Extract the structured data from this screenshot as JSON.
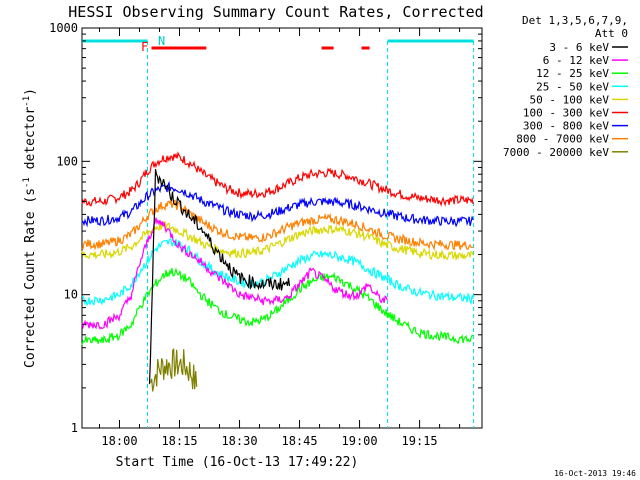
{
  "chart_data": {
    "type": "line",
    "title": "HESSI Observing Summary Count Rates, Corrected",
    "xlabel": "Start Time (16-Oct-13 17:49:22)",
    "ylabel_main": "Corrected Count Rate (s",
    "ylabel_sup1": "-1",
    "ylabel_mid": " detector",
    "ylabel_sup2": "-1",
    "ylabel_end": ")",
    "yscale": "log",
    "ylim": [
      1,
      1000
    ],
    "xlim_minutes": [
      -9.37,
      90.6
    ],
    "x_ticks": [
      "18:00",
      "18:15",
      "18:30",
      "18:45",
      "19:00",
      "19:15"
    ],
    "y_ticks": [
      "1",
      "10",
      "100",
      "1000"
    ],
    "legend_header": [
      "Det 1,3,5,6,7,9,",
      "Att 0"
    ],
    "legend_position": "right",
    "grid": false,
    "timestamp": "16-Oct-2013 19:46",
    "flags": {
      "F_label": "F",
      "N_label": "N",
      "night_intervals_min": [
        [
          -9.37,
          7.0
        ],
        [
          67.0,
          88.5
        ]
      ],
      "flare_intervals_min": [
        [
          8.0,
          21.7
        ],
        [
          50.5,
          53.5
        ],
        [
          60.5,
          62.5
        ]
      ]
    },
    "series": [
      {
        "name": "3 - 6 keV",
        "color": "#000000",
        "points": [
          [
            7.5,
            2
          ],
          [
            9.0,
            80
          ],
          [
            11.0,
            70
          ],
          [
            13.0,
            55
          ],
          [
            15.0,
            48
          ],
          [
            17.0,
            40
          ],
          [
            19.0,
            35
          ],
          [
            21.0,
            30
          ],
          [
            23.0,
            24
          ],
          [
            25.0,
            20
          ],
          [
            27.0,
            17
          ],
          [
            29.0,
            14
          ],
          [
            31.0,
            13
          ],
          [
            33.0,
            12.5
          ],
          [
            35.0,
            12
          ],
          [
            37.0,
            12
          ],
          [
            39.0,
            12
          ],
          [
            41.0,
            12
          ],
          [
            42.5,
            12
          ]
        ]
      },
      {
        "name": "6 - 12 keV",
        "color": "#ff00ff",
        "points": [
          [
            -9.37,
            6
          ],
          [
            -4,
            6
          ],
          [
            0,
            7
          ],
          [
            3,
            10
          ],
          [
            5,
            17
          ],
          [
            7,
            25
          ],
          [
            9,
            35
          ],
          [
            11,
            34
          ],
          [
            13,
            28
          ],
          [
            15,
            23
          ],
          [
            18,
            20
          ],
          [
            21,
            17
          ],
          [
            24,
            14
          ],
          [
            27,
            12
          ],
          [
            30,
            10
          ],
          [
            33,
            9.5
          ],
          [
            36,
            9
          ],
          [
            39,
            9
          ],
          [
            42,
            9.5
          ],
          [
            45,
            12
          ],
          [
            48,
            15
          ],
          [
            51,
            13
          ],
          [
            54,
            11
          ],
          [
            57,
            10
          ],
          [
            60,
            10
          ],
          [
            62,
            12
          ],
          [
            64,
            10
          ],
          [
            66,
            9
          ],
          [
            67,
            9
          ]
        ]
      },
      {
        "name": "12 - 25 keV",
        "color": "#00ff00",
        "points": [
          [
            -9.37,
            4.5
          ],
          [
            -4,
            4.5
          ],
          [
            0,
            5
          ],
          [
            3,
            6
          ],
          [
            5,
            8
          ],
          [
            7,
            10
          ],
          [
            9,
            12
          ],
          [
            11,
            14
          ],
          [
            13,
            15
          ],
          [
            15,
            14
          ],
          [
            17,
            13
          ],
          [
            19,
            11
          ],
          [
            21,
            9.5
          ],
          [
            24,
            8
          ],
          [
            27,
            7
          ],
          [
            30,
            6.5
          ],
          [
            33,
            6.2
          ],
          [
            36,
            6.5
          ],
          [
            39,
            7.5
          ],
          [
            42,
            9
          ],
          [
            45,
            11
          ],
          [
            48,
            12.5
          ],
          [
            51,
            13.5
          ],
          [
            54,
            13.5
          ],
          [
            57,
            12
          ],
          [
            60,
            10.5
          ],
          [
            63,
            9
          ],
          [
            66,
            7.5
          ],
          [
            69,
            6.5
          ],
          [
            72,
            5.7
          ],
          [
            75,
            5.2
          ],
          [
            78,
            5
          ],
          [
            81,
            4.8
          ],
          [
            84,
            4.7
          ],
          [
            88.5,
            4.6
          ]
        ]
      },
      {
        "name": "25 - 50 keV",
        "color": "#00ffff",
        "points": [
          [
            -9.37,
            9
          ],
          [
            -4,
            9.2
          ],
          [
            0,
            10
          ],
          [
            3,
            12
          ],
          [
            5,
            15
          ],
          [
            7,
            18
          ],
          [
            9,
            22
          ],
          [
            11,
            24
          ],
          [
            13,
            25
          ],
          [
            15,
            24
          ],
          [
            17,
            22
          ],
          [
            19,
            19.5
          ],
          [
            21,
            17
          ],
          [
            24,
            15
          ],
          [
            27,
            13.5
          ],
          [
            30,
            12.5
          ],
          [
            33,
            12
          ],
          [
            36,
            12.5
          ],
          [
            39,
            14
          ],
          [
            42,
            16
          ],
          [
            45,
            18
          ],
          [
            48,
            19.5
          ],
          [
            51,
            20
          ],
          [
            54,
            19.5
          ],
          [
            57,
            18.5
          ],
          [
            60,
            17
          ],
          [
            63,
            15
          ],
          [
            66,
            13.5
          ],
          [
            69,
            12
          ],
          [
            72,
            11
          ],
          [
            75,
            10.3
          ],
          [
            78,
            10
          ],
          [
            81,
            9.7
          ],
          [
            84,
            9.5
          ],
          [
            88.5,
            9.3
          ]
        ]
      },
      {
        "name": "50 - 100 keV",
        "color": "#d8d800",
        "points": [
          [
            -9.37,
            20
          ],
          [
            -4,
            20
          ],
          [
            0,
            21
          ],
          [
            3,
            23
          ],
          [
            5,
            26
          ],
          [
            7,
            29
          ],
          [
            9,
            32
          ],
          [
            11,
            33
          ],
          [
            13,
            32
          ],
          [
            15,
            30
          ],
          [
            17,
            28
          ],
          [
            19,
            26
          ],
          [
            21,
            24
          ],
          [
            24,
            22
          ],
          [
            27,
            21
          ],
          [
            30,
            20.5
          ],
          [
            33,
            20.5
          ],
          [
            36,
            21.5
          ],
          [
            39,
            23.5
          ],
          [
            42,
            26
          ],
          [
            45,
            28.5
          ],
          [
            48,
            30
          ],
          [
            51,
            31
          ],
          [
            54,
            31
          ],
          [
            57,
            30
          ],
          [
            60,
            28.5
          ],
          [
            63,
            26.5
          ],
          [
            66,
            24
          ],
          [
            69,
            22.5
          ],
          [
            72,
            21.5
          ],
          [
            75,
            20.5
          ],
          [
            78,
            20
          ],
          [
            81,
            19.8
          ],
          [
            84,
            19.6
          ],
          [
            88.5,
            19.5
          ]
        ]
      },
      {
        "name": "100 - 300 keV",
        "color": "#ff0000",
        "points": [
          [
            -9.37,
            50
          ],
          [
            -4,
            50
          ],
          [
            0,
            54
          ],
          [
            3,
            60
          ],
          [
            5,
            70
          ],
          [
            7,
            85
          ],
          [
            9,
            98
          ],
          [
            11,
            106
          ],
          [
            13,
            110
          ],
          [
            15,
            107
          ],
          [
            17,
            100
          ],
          [
            19,
            90
          ],
          [
            21,
            80
          ],
          [
            24,
            70
          ],
          [
            27,
            62
          ],
          [
            30,
            58
          ],
          [
            33,
            57
          ],
          [
            36,
            58
          ],
          [
            39,
            62
          ],
          [
            42,
            68
          ],
          [
            45,
            75
          ],
          [
            48,
            80
          ],
          [
            51,
            82
          ],
          [
            54,
            81
          ],
          [
            57,
            78
          ],
          [
            60,
            73
          ],
          [
            63,
            67
          ],
          [
            66,
            62
          ],
          [
            69,
            58
          ],
          [
            72,
            55
          ],
          [
            75,
            53
          ],
          [
            78,
            52
          ],
          [
            81,
            51
          ],
          [
            84,
            51
          ],
          [
            88.5,
            51
          ]
        ]
      },
      {
        "name": "300 - 800 keV",
        "color": "#0000ff",
        "points": [
          [
            -9.37,
            36
          ],
          [
            -4,
            36
          ],
          [
            0,
            38
          ],
          [
            3,
            42
          ],
          [
            5,
            48
          ],
          [
            7,
            55
          ],
          [
            9,
            60
          ],
          [
            11,
            63
          ],
          [
            13,
            64
          ],
          [
            15,
            62
          ],
          [
            17,
            58
          ],
          [
            19,
            54
          ],
          [
            21,
            50
          ],
          [
            24,
            46
          ],
          [
            27,
            42
          ],
          [
            30,
            40
          ],
          [
            33,
            39
          ],
          [
            36,
            39.5
          ],
          [
            39,
            41.5
          ],
          [
            42,
            44.5
          ],
          [
            45,
            47.5
          ],
          [
            48,
            49.5
          ],
          [
            51,
            50
          ],
          [
            54,
            49.5
          ],
          [
            57,
            48
          ],
          [
            60,
            46
          ],
          [
            63,
            43.5
          ],
          [
            66,
            41
          ],
          [
            69,
            39
          ],
          [
            72,
            37.5
          ],
          [
            75,
            36.5
          ],
          [
            78,
            36
          ],
          [
            81,
            35.5
          ],
          [
            84,
            35.5
          ],
          [
            88.5,
            35.5
          ]
        ]
      },
      {
        "name": "800 - 7000 keV",
        "color": "#ff8000",
        "points": [
          [
            -9.37,
            24
          ],
          [
            -4,
            24
          ],
          [
            0,
            25.5
          ],
          [
            3,
            28.5
          ],
          [
            5,
            33
          ],
          [
            7,
            39
          ],
          [
            9,
            44
          ],
          [
            11,
            47
          ],
          [
            13,
            48
          ],
          [
            15,
            46
          ],
          [
            17,
            42
          ],
          [
            19,
            38
          ],
          [
            21,
            34.5
          ],
          [
            24,
            31
          ],
          [
            27,
            28.5
          ],
          [
            30,
            27
          ],
          [
            33,
            26.5
          ],
          [
            36,
            27
          ],
          [
            39,
            29
          ],
          [
            42,
            32
          ],
          [
            45,
            34.5
          ],
          [
            48,
            36
          ],
          [
            51,
            37
          ],
          [
            54,
            36.5
          ],
          [
            57,
            35
          ],
          [
            60,
            33
          ],
          [
            63,
            30.5
          ],
          [
            66,
            28
          ],
          [
            69,
            26.5
          ],
          [
            72,
            25.5
          ],
          [
            75,
            24.5
          ],
          [
            78,
            24
          ],
          [
            81,
            23.8
          ],
          [
            84,
            23.6
          ],
          [
            88.5,
            23.5
          ]
        ]
      },
      {
        "name": "7000 - 20000 keV",
        "color": "#808000",
        "points": [
          [
            7.8,
            2.2
          ],
          [
            10,
            2.8
          ],
          [
            12,
            3
          ],
          [
            14,
            3
          ],
          [
            16,
            3
          ],
          [
            18,
            2.6
          ],
          [
            19.5,
            2
          ]
        ]
      }
    ]
  }
}
